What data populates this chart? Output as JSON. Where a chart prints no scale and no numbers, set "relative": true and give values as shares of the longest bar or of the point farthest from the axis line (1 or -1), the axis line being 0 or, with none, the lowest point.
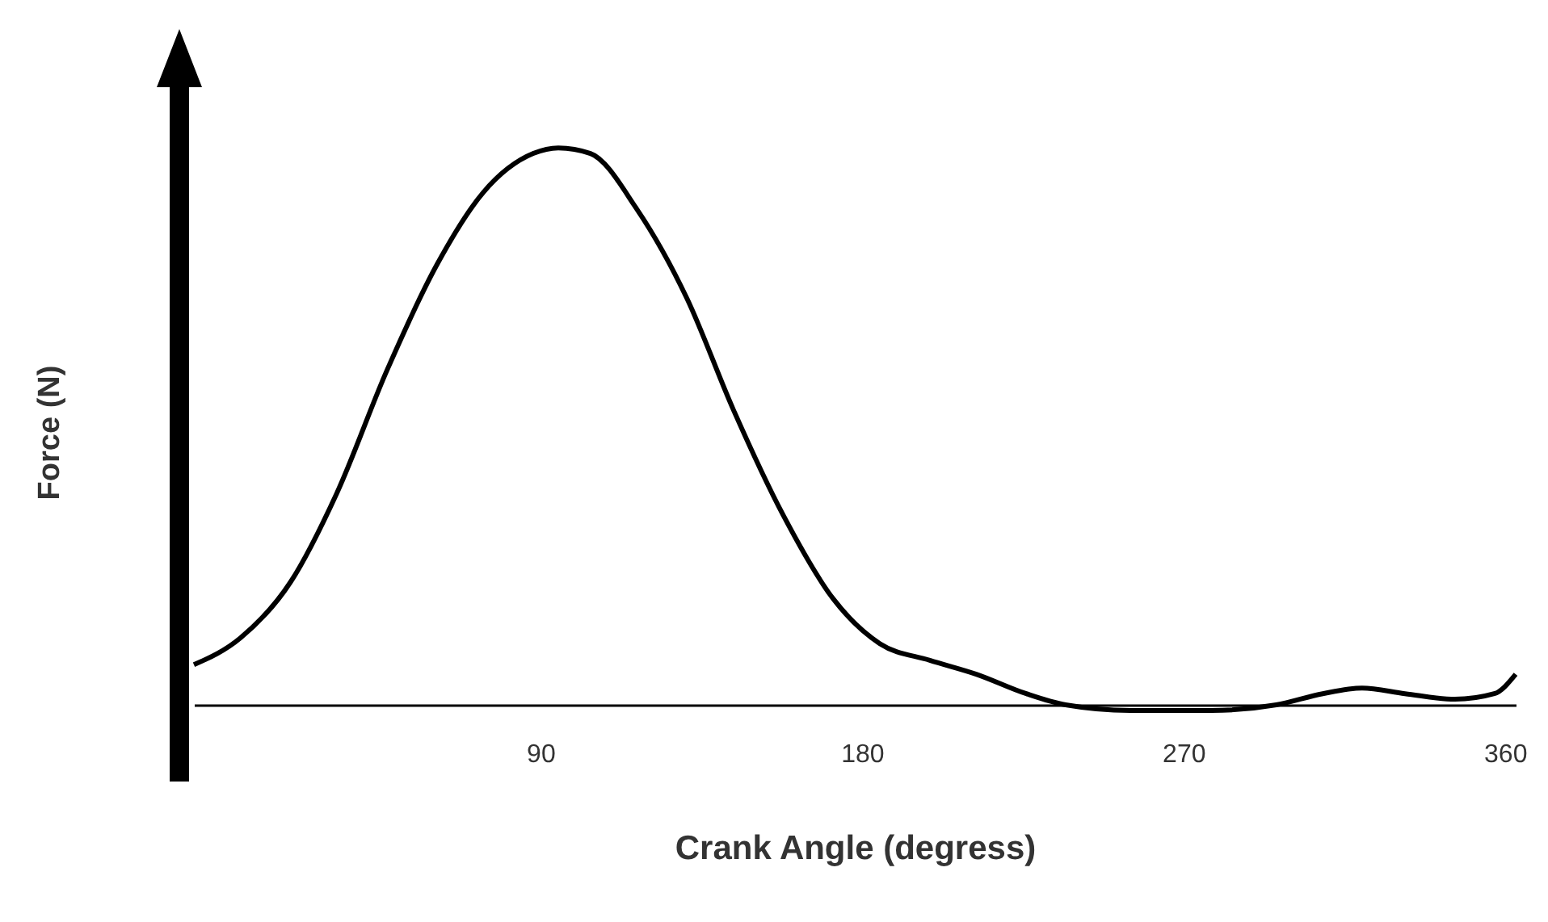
{
  "chart_data": {
    "type": "line",
    "xlabel": "Crank Angle (degress)",
    "ylabel": "Force (N)",
    "relative": true,
    "x": [
      -7,
      6,
      20,
      33,
      47,
      61,
      74,
      88,
      95,
      104,
      117,
      131,
      144,
      158,
      172,
      185,
      199,
      212,
      226,
      237,
      255,
      278,
      296,
      309,
      320,
      332,
      346,
      357,
      363
    ],
    "xlim": [
      -7,
      363
    ],
    "xticks": [
      90,
      180,
      270,
      360
    ],
    "grid": false,
    "legend": false,
    "marker": "none",
    "line_style": "solid",
    "series": [
      {
        "color": "#000000",
        "values": [
          0.072,
          0.12,
          0.22,
          0.38,
          0.6,
          0.79,
          0.92,
          0.99,
          1,
          0.99,
          0.89,
          0.73,
          0.53,
          0.34,
          0.19,
          0.11,
          0.08,
          0.055,
          0.02,
          0,
          -0.01,
          -0.01,
          0,
          0.02,
          0.03,
          0.02,
          0.01,
          0.02,
          0.055
        ]
      }
    ]
  }
}
